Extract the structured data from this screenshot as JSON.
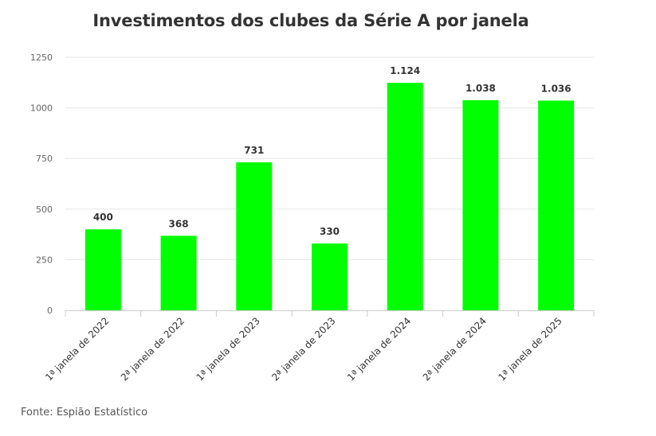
{
  "chart_data": {
    "type": "bar",
    "title": "Investimentos dos clubes da Série A por janela",
    "xlabel": "",
    "ylabel": "",
    "categories": [
      "1ª janela de 2022",
      "2ª janela de 2022",
      "1ª janela de 2023",
      "2ª janela de 2023",
      "1ª janela de 2024",
      "2ª janela de 2024",
      "1ª janela de 2025"
    ],
    "values": [
      400,
      368,
      731,
      330,
      1124,
      1038,
      1036
    ],
    "value_labels": [
      "400",
      "368",
      "731",
      "330",
      "1.124",
      "1.038",
      "1.036"
    ],
    "ylim": [
      0,
      1250
    ],
    "yticks": [
      0,
      250,
      500,
      750,
      1000,
      1250
    ],
    "ytick_labels": [
      "0",
      "250",
      "500",
      "750",
      "1000",
      "1250"
    ],
    "grid": true,
    "legend": false,
    "bar_color": "#00ff00",
    "grid_color": "#e6e6e6",
    "axis_color": "#cccccc",
    "text_color": "#333333"
  },
  "source_text": "Fonte: Espião Estatístico"
}
